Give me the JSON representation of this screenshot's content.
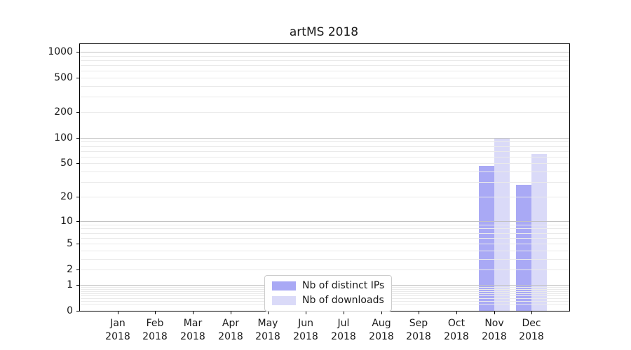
{
  "chart_data": {
    "type": "bar",
    "title": "artMS 2018",
    "categories": [
      "Jan",
      "Feb",
      "Mar",
      "Apr",
      "May",
      "Jun",
      "Jul",
      "Aug",
      "Sep",
      "Oct",
      "Nov",
      "Dec"
    ],
    "category_year": "2018",
    "series": [
      {
        "name": "Nb of distinct IPs",
        "color": "#a9a9f5",
        "values": [
          0,
          0,
          0,
          0,
          0,
          0,
          0,
          0,
          0,
          0,
          47,
          28
        ]
      },
      {
        "name": "Nb of downloads",
        "color": "#dadaf8",
        "values": [
          0,
          0,
          0,
          0,
          0,
          0,
          0,
          0,
          0,
          0,
          100,
          65
        ]
      }
    ],
    "xlabel": "",
    "ylabel": "",
    "scale": "log1p",
    "ylim": [
      0,
      1230
    ],
    "yticks": [
      0,
      1,
      2,
      5,
      10,
      20,
      50,
      100,
      200,
      500,
      1000
    ],
    "grid": {
      "on": true,
      "major_lines": [
        1,
        10,
        100,
        1000
      ],
      "minor_lines": [
        0.2,
        0.3,
        0.4,
        0.5,
        0.6,
        0.7,
        0.8,
        0.9,
        2,
        3,
        4,
        5,
        6,
        7,
        8,
        9,
        20,
        30,
        40,
        50,
        60,
        70,
        80,
        90,
        200,
        300,
        400,
        500,
        600,
        700,
        800,
        900
      ]
    },
    "legend_position": "lower center"
  }
}
